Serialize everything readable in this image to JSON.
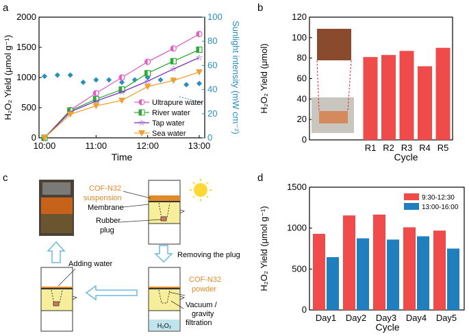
{
  "panels": {
    "a": "a",
    "b": "b",
    "c": "c",
    "d": "d"
  },
  "chart_data": [
    {
      "panel": "a",
      "type": "line",
      "xlabel": "Time",
      "ylabel": "H₂O₂ Yield (μmol g⁻¹)",
      "y2label": "Sunlight intensity (mW cm⁻²)",
      "xticks": [
        "10:00",
        "11:00",
        "12:00",
        "13:00"
      ],
      "yticks": [
        "0",
        "500",
        "1000",
        "1500",
        "2000"
      ],
      "y2ticks": [
        "0",
        "20",
        "40",
        "60",
        "80",
        "100"
      ],
      "xlim": [
        10,
        13
      ],
      "ylim": [
        0,
        2000
      ],
      "y2lim": [
        0,
        100
      ],
      "x": [
        10,
        10.5,
        11,
        11.5,
        12,
        12.5,
        13
      ],
      "series": [
        {
          "name": "Ultrapure water",
          "color": "#e25fc4",
          "marker": "circle-half",
          "values": [
            0,
            460,
            740,
            1000,
            1260,
            1480,
            1720
          ]
        },
        {
          "name": "River water",
          "color": "#2eaa36",
          "marker": "square-half",
          "values": [
            0,
            450,
            640,
            800,
            1070,
            1270,
            1460
          ]
        },
        {
          "name": "Tap water",
          "color": "#7a2bbd",
          "marker": "star",
          "values": [
            0,
            430,
            610,
            760,
            940,
            1140,
            1330
          ]
        },
        {
          "name": "Sea water",
          "color": "#f0a030",
          "marker": "triangle-down",
          "values": [
            0,
            390,
            530,
            620,
            850,
            950,
            1090
          ]
        }
      ],
      "sunlight": {
        "name": "Sunlight intensity",
        "color": "#2a8ec0",
        "x": [
          10,
          10.25,
          10.5,
          10.75,
          11,
          11.25,
          11.5,
          11.75,
          12,
          12.25,
          12.5,
          12.75,
          13
        ],
        "values": [
          51,
          52,
          52,
          46,
          48,
          48,
          46,
          48,
          50,
          48,
          48,
          44,
          45
        ]
      }
    },
    {
      "panel": "b",
      "type": "bar",
      "xlabel": "Cycle",
      "ylabel": "H₂O₂ Yield (μmol)",
      "categories": [
        "R1",
        "R2",
        "R3",
        "R4",
        "R5"
      ],
      "values": [
        81,
        83,
        87,
        72,
        90
      ],
      "yticks": [
        "0",
        "20",
        "40",
        "60",
        "80",
        "100",
        "120"
      ],
      "ylim": [
        0,
        120
      ],
      "color": "#f04b4b"
    },
    {
      "panel": "d",
      "type": "bar",
      "xlabel": "Cycle",
      "ylabel": "H₂O₂ Yield (μmol g⁻¹)",
      "categories": [
        "Day1",
        "Day2",
        "Day3",
        "Day4",
        "Day5"
      ],
      "yticks": [
        "0",
        "500",
        "1000",
        "1500"
      ],
      "ylim": [
        0,
        1500
      ],
      "series": [
        {
          "name": "9:30-12:30",
          "color": "#f04b4b",
          "values": [
            930,
            1155,
            1165,
            1010,
            970
          ]
        },
        {
          "name": "13:00-16:00",
          "color": "#1f7fbf",
          "values": [
            645,
            875,
            860,
            900,
            750
          ]
        }
      ]
    }
  ],
  "diagram_c": {
    "cof_suspension": "COF-N32\nsuspension",
    "membrane": "Membrane",
    "rubber_plug": "Rubber\nplug",
    "removing_plug": "Removing the plug",
    "adding_water": "Adding water",
    "cof_powder": "COF-N32\npowder",
    "vacuum": "Vacuum /\ngravity\nfiltration",
    "h2o2": "H₂O₂"
  },
  "colors": {
    "red": "#f04b4b",
    "blue": "#1f7fbf",
    "orange": "#e08a2a",
    "yellow": "#f6ee9a",
    "cyan": "#2a8ec0"
  }
}
